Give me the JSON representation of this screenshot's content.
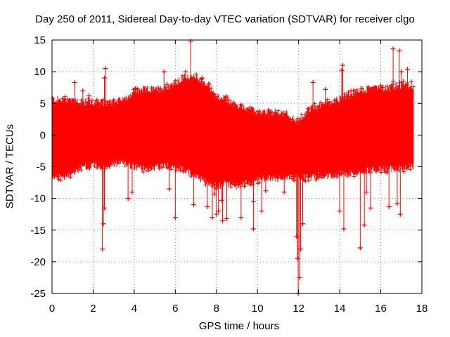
{
  "chart_data": {
    "type": "scatter",
    "title": "Day 250 of 2011, Sidereal Day-to-day VTEC variation (SDTVAR) for receiver clgo",
    "xlabel": "GPS time / hours",
    "ylabel": "SDTVAR / TECUs",
    "xlim": [
      0,
      18
    ],
    "ylim": [
      -25,
      15
    ],
    "xticks": [
      0,
      2,
      4,
      6,
      8,
      10,
      12,
      14,
      16,
      18
    ],
    "yticks": [
      -25,
      -20,
      -15,
      -10,
      -5,
      0,
      5,
      10,
      15
    ],
    "grid": true,
    "series": [
      {
        "name": "SDTVAR",
        "color": "#ff0000",
        "marker": "plus",
        "x_range": [
          0,
          17.6
        ],
        "envelope": {
          "x": [
            0,
            0.5,
            1.0,
            1.5,
            2.0,
            2.5,
            3.0,
            3.5,
            4.0,
            4.5,
            5.0,
            5.5,
            6.0,
            6.5,
            7.0,
            7.5,
            8.0,
            8.5,
            9.0,
            9.5,
            10.0,
            10.5,
            11.0,
            11.5,
            12.0,
            12.5,
            13.0,
            13.5,
            14.0,
            14.5,
            15.0,
            15.5,
            16.0,
            16.5,
            17.0,
            17.6
          ],
          "upper": [
            5.0,
            5.0,
            5.0,
            4.6,
            4.6,
            4.5,
            4.6,
            5.0,
            6.3,
            6.6,
            6.6,
            6.8,
            7.5,
            8.7,
            8.5,
            7.5,
            5.5,
            5.0,
            4.0,
            3.5,
            3.0,
            3.0,
            3.0,
            2.5,
            1.5,
            3.5,
            4.0,
            4.6,
            5.2,
            5.8,
            6.3,
            6.8,
            7.0,
            6.8,
            7.2,
            7.3
          ],
          "lower": [
            -6.0,
            -6.0,
            -5.5,
            -4.5,
            -4.0,
            -4.5,
            -4.0,
            -4.0,
            -4.5,
            -4.7,
            -4.5,
            -4.2,
            -4.5,
            -5.0,
            -6.0,
            -6.8,
            -7.5,
            -7.0,
            -7.5,
            -7.0,
            -6.5,
            -6.2,
            -6.4,
            -6.0,
            -6.0,
            -6.2,
            -5.8,
            -5.8,
            -5.6,
            -5.5,
            -5.3,
            -5.0,
            -4.8,
            -4.7,
            -4.7,
            -4.4
          ]
        },
        "outliers": [
          [
            2.45,
            -18.0
          ],
          [
            2.5,
            -14.0
          ],
          [
            2.55,
            -11.5
          ],
          [
            2.6,
            10.5
          ],
          [
            2.55,
            9.0
          ],
          [
            3.7,
            -10.0
          ],
          [
            3.9,
            -9.0
          ],
          [
            1.1,
            8.3
          ],
          [
            1.5,
            7.0
          ],
          [
            1.8,
            6.2
          ],
          [
            4.05,
            7.3
          ],
          [
            5.45,
            10.0
          ],
          [
            5.7,
            -8.5
          ],
          [
            5.6,
            8.0
          ],
          [
            6.0,
            -13.0
          ],
          [
            6.5,
            10.0
          ],
          [
            6.75,
            14.8
          ],
          [
            6.9,
            -11.0
          ],
          [
            7.3,
            9.0
          ],
          [
            7.55,
            -11.3
          ],
          [
            7.8,
            -13.0
          ],
          [
            8.0,
            -12.5
          ],
          [
            8.1,
            -12.0
          ],
          [
            8.3,
            -13.5
          ],
          [
            8.5,
            -13.2
          ],
          [
            8.25,
            -10.3
          ],
          [
            9.8,
            -14.8
          ],
          [
            9.8,
            -10.5
          ],
          [
            10.2,
            -12.0
          ],
          [
            11.3,
            -9.0
          ],
          [
            11.9,
            -16.0
          ],
          [
            11.98,
            -25.0
          ],
          [
            12.05,
            -22.5
          ],
          [
            12.1,
            -18.0
          ],
          [
            12.2,
            -14.0
          ],
          [
            11.95,
            -19.5
          ],
          [
            12.7,
            8.3
          ],
          [
            14.0,
            -12.0
          ],
          [
            14.1,
            10.2
          ],
          [
            14.2,
            -14.8
          ],
          [
            14.15,
            11.0
          ],
          [
            15.0,
            -17.8
          ],
          [
            15.2,
            -14.2
          ],
          [
            15.3,
            -9.0
          ],
          [
            15.7,
            7.5
          ],
          [
            16.0,
            7.8
          ],
          [
            16.4,
            -11.3
          ],
          [
            16.6,
            13.6
          ],
          [
            16.8,
            -10.8
          ],
          [
            16.9,
            13.3
          ],
          [
            16.95,
            -12.5
          ],
          [
            17.0,
            10.0
          ],
          [
            17.1,
            8.5
          ],
          [
            17.3,
            10.4
          ],
          [
            16.6,
            8.5
          ],
          [
            15.5,
            -11.5
          ],
          [
            13.3,
            7.2
          ],
          [
            9.2,
            -13.0
          ],
          [
            10.4,
            -8.8
          ],
          [
            7.9,
            -9.3
          ]
        ]
      }
    ]
  }
}
